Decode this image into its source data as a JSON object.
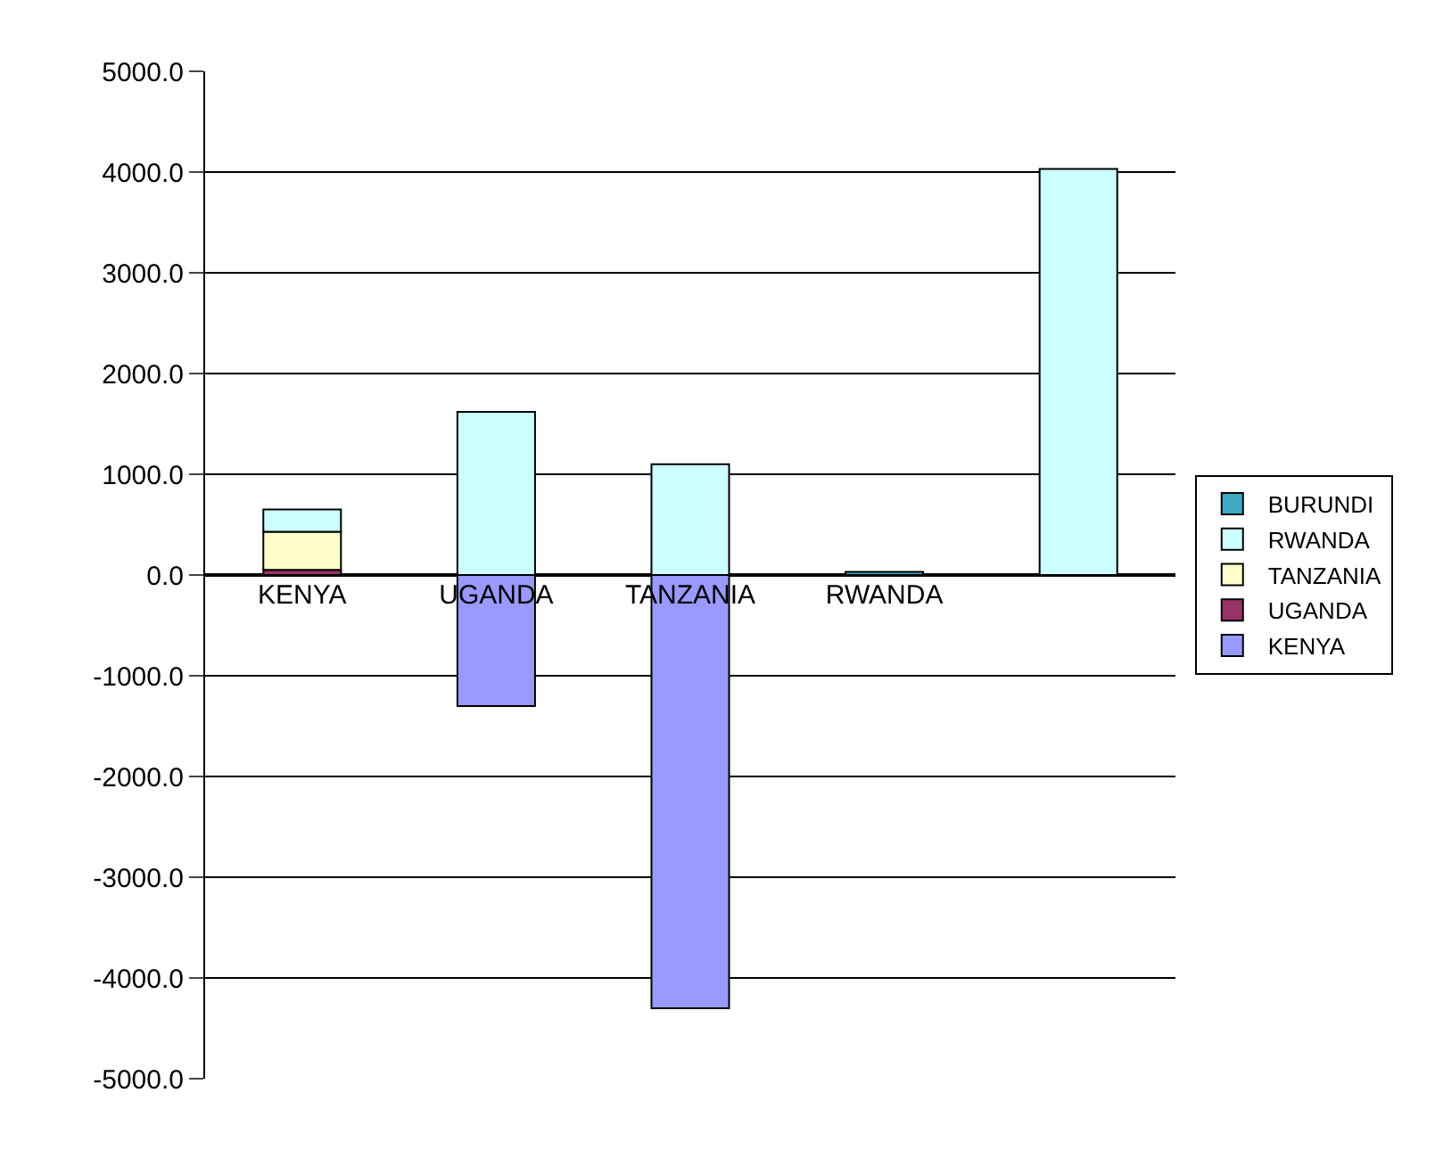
{
  "chart_data": {
    "type": "bar",
    "stacked": true,
    "categories": [
      "KENYA",
      "UGANDA",
      "TANZANIA",
      "RWANDA",
      null
    ],
    "series": [
      {
        "name": "KENYA",
        "color": "#9999ff",
        "values": [
          null,
          -1300,
          -4300,
          null,
          null
        ]
      },
      {
        "name": "UGANDA",
        "color": "#993366",
        "values": [
          50,
          null,
          null,
          null,
          null
        ]
      },
      {
        "name": "TANZANIA",
        "color": "#ffffcc",
        "values": [
          380,
          null,
          null,
          null,
          null
        ]
      },
      {
        "name": "RWANDA",
        "color": "#ccffff",
        "values": [
          220,
          1620,
          1100,
          null,
          4030
        ]
      },
      {
        "name": "BURUNDI",
        "color": "#3fa9c4",
        "values": [
          null,
          null,
          null,
          30,
          null
        ]
      }
    ],
    "ylim": [
      -5000,
      5000
    ],
    "yticks": [
      {
        "value": -5000,
        "label": "-5000.0"
      },
      {
        "value": -4000,
        "label": "-4000.0"
      },
      {
        "value": -3000,
        "label": "-3000.0"
      },
      {
        "value": -2000,
        "label": "-2000.0"
      },
      {
        "value": -1000,
        "label": "-1000.0"
      },
      {
        "value": 0,
        "label": "0.0"
      },
      {
        "value": 1000,
        "label": "1000.0"
      },
      {
        "value": 2000,
        "label": "2000.0"
      },
      {
        "value": 3000,
        "label": "3000.0"
      },
      {
        "value": 4000,
        "label": "4000.0"
      },
      {
        "value": 5000,
        "label": "5000.0"
      }
    ],
    "grid": "y",
    "legend": "right"
  }
}
